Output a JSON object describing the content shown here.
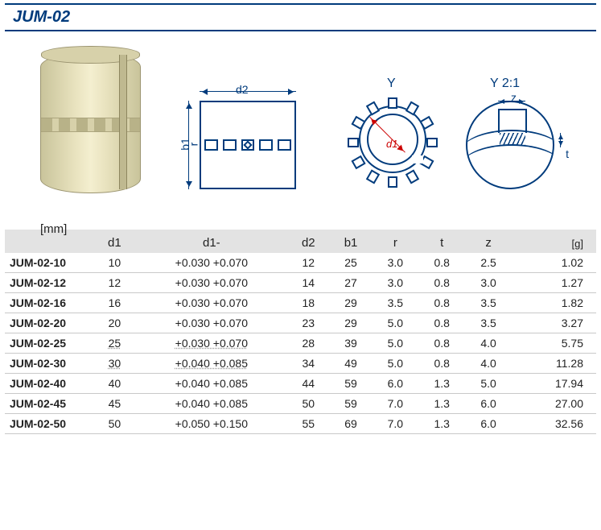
{
  "title": "JUM-02",
  "unit_label": "[mm]",
  "diagram_labels": {
    "d1": "d1",
    "d2": "d2",
    "b1": "b1",
    "r": "r",
    "Y": "Y",
    "Y_scale": "Y 2:1",
    "z": "z",
    "t": "t"
  },
  "table": {
    "columns": [
      "",
      "d1",
      "d1-",
      "d2",
      "b1",
      "r",
      "t",
      "z",
      "[g]"
    ],
    "col_align": [
      "left",
      "center",
      "center",
      "center",
      "center",
      "center",
      "center",
      "center",
      "right"
    ],
    "header_bg": "#e3e3e3",
    "row_border": "#c9c9c9",
    "rows": [
      {
        "pn": "JUM-02-10",
        "d1": "10",
        "tol": "+0.030 +0.070",
        "d2": "12",
        "b1": "25",
        "r": "3.0",
        "t": "0.8",
        "z": "2.5",
        "g": "1.02"
      },
      {
        "pn": "JUM-02-12",
        "d1": "12",
        "tol": "+0.030 +0.070",
        "d2": "14",
        "b1": "27",
        "r": "3.0",
        "t": "0.8",
        "z": "3.0",
        "g": "1.27"
      },
      {
        "pn": "JUM-02-16",
        "d1": "16",
        "tol": "+0.030 +0.070",
        "d2": "18",
        "b1": "29",
        "r": "3.5",
        "t": "0.8",
        "z": "3.5",
        "g": "1.82"
      },
      {
        "pn": "JUM-02-20",
        "d1": "20",
        "tol": "+0.030 +0.070",
        "d2": "23",
        "b1": "29",
        "r": "5.0",
        "t": "0.8",
        "z": "3.5",
        "g": "3.27"
      },
      {
        "pn": "JUM-02-25",
        "d1": "25",
        "tol": "+0.030 +0.070",
        "d2": "28",
        "b1": "39",
        "r": "5.0",
        "t": "0.8",
        "z": "4.0",
        "g": "5.75"
      },
      {
        "pn": "JUM-02-30",
        "d1": "30",
        "tol": "+0.040 +0.085",
        "d2": "34",
        "b1": "49",
        "r": "5.0",
        "t": "0.8",
        "z": "4.0",
        "g": "11.28"
      },
      {
        "pn": "JUM-02-40",
        "d1": "40",
        "tol": "+0.040 +0.085",
        "d2": "44",
        "b1": "59",
        "r": "6.0",
        "t": "1.3",
        "z": "5.0",
        "g": "17.94"
      },
      {
        "pn": "JUM-02-45",
        "d1": "45",
        "tol": "+0.040 +0.085",
        "d2": "50",
        "b1": "59",
        "r": "7.0",
        "t": "1.3",
        "z": "6.0",
        "g": "27.00"
      },
      {
        "pn": "JUM-02-50",
        "d1": "50",
        "tol": "+0.050 +0.150",
        "d2": "55",
        "b1": "69",
        "r": "7.0",
        "t": "1.3",
        "z": "6.0",
        "g": "32.56"
      }
    ]
  },
  "colors": {
    "brand": "#003b7c",
    "accent_red": "#c00",
    "bushing_light": "#f4efd0",
    "bushing_dark": "#c9c49b"
  }
}
